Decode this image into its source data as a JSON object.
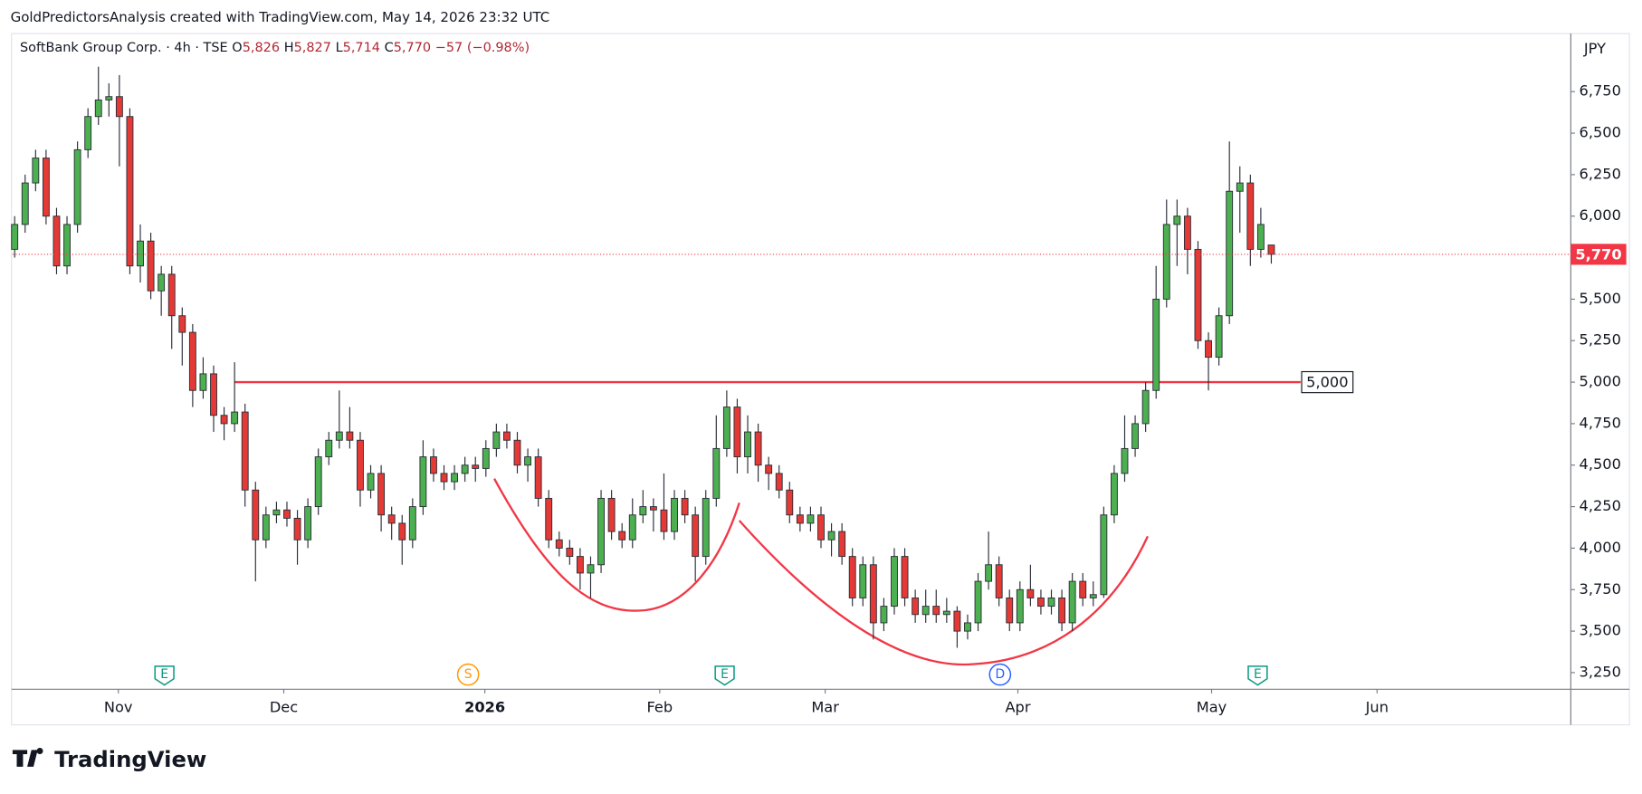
{
  "chart_data": {
    "type": "candlestick",
    "attribution": "GoldPredictorsAnalysis created with TradingView.com, May 14, 2026 23:32 UTC",
    "legend": {
      "symbol": "SoftBank Group Corp. · 4h · TSE",
      "o_key": "O",
      "o": "5,826",
      "h_key": "H",
      "h": "5,827",
      "l_key": "L",
      "l": "5,714",
      "c_key": "C",
      "c": "5,770",
      "change": "−57 (−0.98%)"
    },
    "currency": "JPY",
    "brand": "TradingView",
    "up_color": "#4caf50",
    "down_color": "#e53935",
    "border_color": "#2a2e39",
    "grid": false,
    "categories": [
      null,
      null,
      null,
      null,
      null,
      null,
      null,
      null,
      null,
      null,
      null,
      null,
      null,
      null,
      null,
      null,
      null,
      null,
      null,
      null,
      null,
      null,
      null,
      null,
      null,
      null,
      null,
      null,
      null,
      null,
      null,
      null,
      null,
      null,
      null,
      null,
      null,
      null,
      null,
      null,
      null,
      null,
      null,
      null,
      null,
      null,
      null,
      null,
      null,
      null,
      null,
      null,
      null,
      null,
      null,
      null,
      null,
      null,
      null,
      null,
      null,
      null,
      null,
      null,
      null,
      null,
      null,
      null,
      null,
      null,
      null,
      null,
      null,
      null,
      null,
      null,
      null,
      null,
      null,
      null,
      null,
      null,
      null,
      null,
      null,
      null,
      null,
      null,
      null,
      null,
      null,
      null,
      null,
      null,
      null,
      null,
      null,
      null,
      null,
      null,
      null,
      null,
      null,
      null,
      null,
      null,
      null,
      null,
      null,
      null,
      null,
      null,
      null,
      null,
      null,
      null,
      null,
      null,
      null,
      null,
      null
    ],
    "open": [
      5800,
      5950,
      6200,
      6350,
      6000,
      5700,
      5950,
      6400,
      6600,
      6700,
      6720,
      6600,
      5700,
      5850,
      5550,
      5650,
      5400,
      5300,
      4950,
      5050,
      4800,
      4750,
      4820,
      4350,
      4050,
      4200,
      4230,
      4180,
      4050,
      4250,
      4550,
      4650,
      4700,
      4650,
      4350,
      4450,
      4200,
      4150,
      4050,
      4250,
      4550,
      4450,
      4400,
      4450,
      4500,
      4480,
      4600,
      4700,
      4650,
      4500,
      4550,
      4300,
      4050,
      4000,
      3950,
      3850,
      3900,
      4300,
      4100,
      4050,
      4200,
      4250,
      4230,
      4100,
      4300,
      4200,
      3950,
      4300,
      4600,
      4850,
      4550,
      4700,
      4500,
      4450,
      4350,
      4200,
      4150,
      4200,
      4050,
      4100,
      3950,
      3700,
      3900,
      3550,
      3650,
      3950,
      3700,
      3600,
      3650,
      3600,
      3620,
      3500,
      3550,
      3800,
      3900,
      3700,
      3550,
      3750,
      3700,
      3650,
      3700,
      3550,
      3800,
      3700,
      3720,
      4200,
      4450,
      4600,
      4750,
      4950,
      5500,
      5950,
      6000,
      5800,
      5250,
      5150,
      5400,
      6150,
      6200,
      5800,
      5826
    ],
    "high": [
      6000,
      6250,
      6400,
      6400,
      6050,
      6000,
      6450,
      6650,
      6900,
      6800,
      6850,
      6650,
      5950,
      5900,
      5700,
      5700,
      5450,
      5350,
      5150,
      5100,
      4850,
      5120,
      4870,
      4400,
      4250,
      4280,
      4280,
      4230,
      4300,
      4600,
      4700,
      4950,
      4850,
      4700,
      4500,
      4500,
      4250,
      4200,
      4300,
      4650,
      4600,
      4500,
      4500,
      4550,
      4550,
      4650,
      4750,
      4750,
      4700,
      4600,
      4600,
      4350,
      4100,
      4050,
      4000,
      3950,
      4350,
      4350,
      4150,
      4300,
      4350,
      4300,
      4450,
      4350,
      4350,
      4250,
      4350,
      4800,
      4950,
      4900,
      4800,
      4750,
      4550,
      4500,
      4400,
      4250,
      4250,
      4250,
      4150,
      4150,
      4000,
      3950,
      3950,
      3700,
      4000,
      4000,
      3750,
      3750,
      3750,
      3700,
      3650,
      3600,
      3850,
      4100,
      3950,
      3750,
      3800,
      3900,
      3750,
      3750,
      3750,
      3850,
      3850,
      3800,
      4250,
      4500,
      4800,
      4800,
      5000,
      5700,
      6100,
      6100,
      6050,
      5850,
      5300,
      5450,
      6450,
      6300,
      6250,
      6050,
      5827
    ],
    "low": [
      5750,
      5900,
      6150,
      5950,
      5650,
      5650,
      5900,
      6350,
      6550,
      6600,
      6300,
      5650,
      5600,
      5500,
      5400,
      5200,
      5100,
      4850,
      4900,
      4700,
      4650,
      4700,
      4250,
      3800,
      4000,
      4150,
      4130,
      3900,
      4000,
      4200,
      4500,
      4600,
      4600,
      4250,
      4300,
      4100,
      4050,
      3900,
      4000,
      4200,
      4400,
      4350,
      4350,
      4400,
      4400,
      4430,
      4550,
      4600,
      4450,
      4400,
      4250,
      4000,
      3950,
      3900,
      3750,
      3700,
      3850,
      4050,
      4000,
      4000,
      4150,
      4100,
      4050,
      4050,
      4150,
      3800,
      3900,
      4250,
      4550,
      4450,
      4450,
      4400,
      4350,
      4300,
      4150,
      4100,
      4100,
      4000,
      3950,
      3900,
      3650,
      3650,
      3450,
      3500,
      3600,
      3650,
      3550,
      3550,
      3550,
      3550,
      3400,
      3450,
      3500,
      3750,
      3650,
      3500,
      3500,
      3650,
      3600,
      3600,
      3500,
      3500,
      3650,
      3650,
      3700,
      4150,
      4400,
      4550,
      4700,
      4900,
      5450,
      5700,
      5650,
      5200,
      4950,
      5100,
      5350,
      5900,
      5700,
      5750,
      5714
    ],
    "close": [
      5950,
      6200,
      6350,
      6000,
      5700,
      5950,
      6400,
      6600,
      6700,
      6720,
      6600,
      5700,
      5850,
      5550,
      5650,
      5400,
      5300,
      4950,
      5050,
      4800,
      4750,
      4820,
      4350,
      4050,
      4200,
      4230,
      4180,
      4050,
      4250,
      4550,
      4650,
      4700,
      4650,
      4350,
      4450,
      4200,
      4150,
      4050,
      4250,
      4550,
      4450,
      4400,
      4450,
      4500,
      4480,
      4600,
      4700,
      4650,
      4500,
      4550,
      4300,
      4050,
      4000,
      3950,
      3850,
      3900,
      4300,
      4100,
      4050,
      4200,
      4250,
      4230,
      4100,
      4300,
      4200,
      3950,
      4300,
      4600,
      4850,
      4550,
      4700,
      4500,
      4450,
      4350,
      4200,
      4150,
      4200,
      4050,
      4100,
      3950,
      3700,
      3900,
      3550,
      3650,
      3950,
      3700,
      3600,
      3650,
      3600,
      3620,
      3500,
      3550,
      3800,
      3900,
      3700,
      3550,
      3750,
      3700,
      3650,
      3700,
      3550,
      3800,
      3700,
      3720,
      4200,
      4450,
      4600,
      4750,
      4950,
      5500,
      5950,
      6000,
      5800,
      5250,
      5150,
      5400,
      6150,
      6200,
      5800,
      5950,
      5770
    ],
    "last_price": {
      "value": 5770,
      "label": "5,770"
    },
    "level_line": {
      "value": 5000,
      "label": "5,000"
    },
    "events": [
      "E",
      "S",
      "E",
      "D",
      "E"
    ],
    "ylim": [
      3150,
      7100
    ],
    "yticks": [
      {
        "value": 3250,
        "label": "3,250"
      },
      {
        "value": 3500,
        "label": "3,500"
      },
      {
        "value": 3750,
        "label": "3,750"
      },
      {
        "value": 4000,
        "label": "4,000"
      },
      {
        "value": 4250,
        "label": "4,250"
      },
      {
        "value": 4500,
        "label": "4,500"
      },
      {
        "value": 4750,
        "label": "4,750"
      },
      {
        "value": 5000,
        "label": "5,000"
      },
      {
        "value": 5250,
        "label": "5,250"
      },
      {
        "value": 5500,
        "label": "5,500"
      },
      {
        "value": 5750,
        "label": "5,750"
      },
      {
        "value": 6000,
        "label": "6,000"
      },
      {
        "value": 6250,
        "label": "6,250"
      },
      {
        "value": 6500,
        "label": "6,500"
      },
      {
        "value": 6750,
        "label": "6,750"
      }
    ],
    "xlim": [
      -0.2,
      148.6
    ],
    "xticks": [
      {
        "value": 9.9,
        "label": "Nov"
      },
      {
        "value": 25.7,
        "label": "Dec"
      },
      {
        "value": 44.9,
        "label": "2026"
      },
      {
        "value": 61.6,
        "label": "Feb"
      },
      {
        "value": 77.4,
        "label": "Mar"
      },
      {
        "value": 95.8,
        "label": "Apr"
      },
      {
        "value": 114.3,
        "label": "May"
      },
      {
        "value": 130.1,
        "label": "Jun"
      }
    ]
  }
}
